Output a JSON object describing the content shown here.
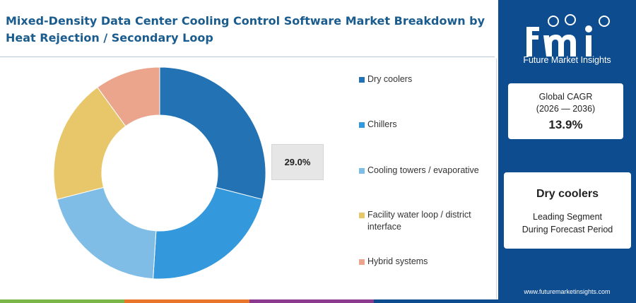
{
  "title": "Mixed-Density Data Center Cooling Control Software Market Breakdown by Heat Rejection / Secondary Loop",
  "chart_data": {
    "type": "pie",
    "style": "donut",
    "categories": [
      "Dry coolers",
      "Chillers",
      "Cooling towers / evaporative",
      "Facility water loop / district interface",
      "Hybrid systems"
    ],
    "values": [
      29.0,
      22.0,
      20.0,
      19.0,
      10.0
    ],
    "colors": [
      "#2272b4",
      "#3399dc",
      "#7fbde6",
      "#e8c76a",
      "#eba58c"
    ],
    "callout_label": "29.0%",
    "legend_position": "right"
  },
  "side_panel": {
    "brand": "fmi",
    "brand_tagline": "Future Market Insights",
    "cagr_label": "Global CAGR",
    "cagr_range": "(2026 — 2036)",
    "cagr_value": "13.9%",
    "segment_name": "Dry coolers",
    "segment_line1": "Leading Segment",
    "segment_line2": "During Forecast Period",
    "url": "www.futuremarketinsights.com"
  },
  "accent_colors": {
    "panel": "#0d4c8f",
    "title": "#1a5c8e",
    "bar": [
      "#7ab648",
      "#e8752a",
      "#8b3a8f",
      "#0d4c8f"
    ]
  }
}
